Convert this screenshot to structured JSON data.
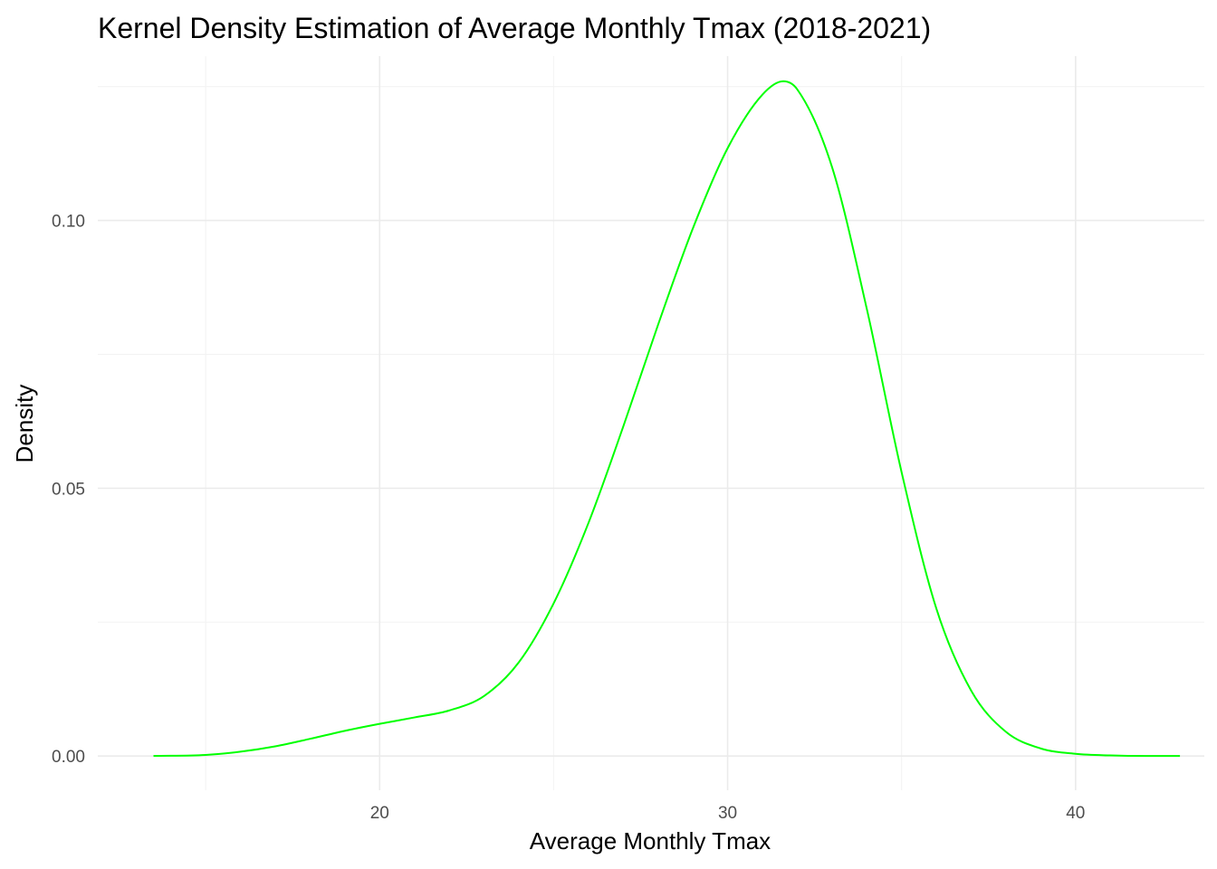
{
  "chart_data": {
    "type": "line",
    "title": "Kernel Density Estimation of Average Monthly Tmax (2018-2021)",
    "xlabel": "Average Monthly Tmax",
    "ylabel": "Density",
    "xlim": [
      11.9,
      43.7
    ],
    "ylim": [
      -0.0064,
      0.1307
    ],
    "x_ticks": [
      20,
      30,
      40
    ],
    "x_tick_labels": [
      "20",
      "30",
      "40"
    ],
    "y_ticks": [
      0.0,
      0.05,
      0.1
    ],
    "y_tick_labels": [
      "0.00",
      "0.05",
      "0.10"
    ],
    "grid": true,
    "legend": "none",
    "line_color": "#00ff00",
    "series": [
      {
        "x": [
          13.5,
          15.0,
          16.0,
          17.0,
          18.0,
          19.0,
          20.0,
          21.0,
          22.0,
          23.0,
          24.0,
          25.0,
          26.0,
          27.0,
          28.0,
          29.0,
          30.0,
          31.0,
          31.6,
          32.0,
          33.0,
          34.0,
          35.0,
          36.0,
          37.0,
          38.0,
          39.0,
          40.0,
          41.0,
          42.0,
          43.0
        ],
        "y": [
          0.0,
          0.0002,
          0.0008,
          0.0018,
          0.0032,
          0.0047,
          0.006,
          0.0072,
          0.0085,
          0.0112,
          0.0175,
          0.0285,
          0.0435,
          0.0615,
          0.0805,
          0.0985,
          0.1135,
          0.1235,
          0.126,
          0.1245,
          0.11,
          0.0835,
          0.053,
          0.0275,
          0.0122,
          0.0045,
          0.0014,
          0.0004,
          0.0001,
          0.0,
          0.0
        ]
      }
    ]
  }
}
